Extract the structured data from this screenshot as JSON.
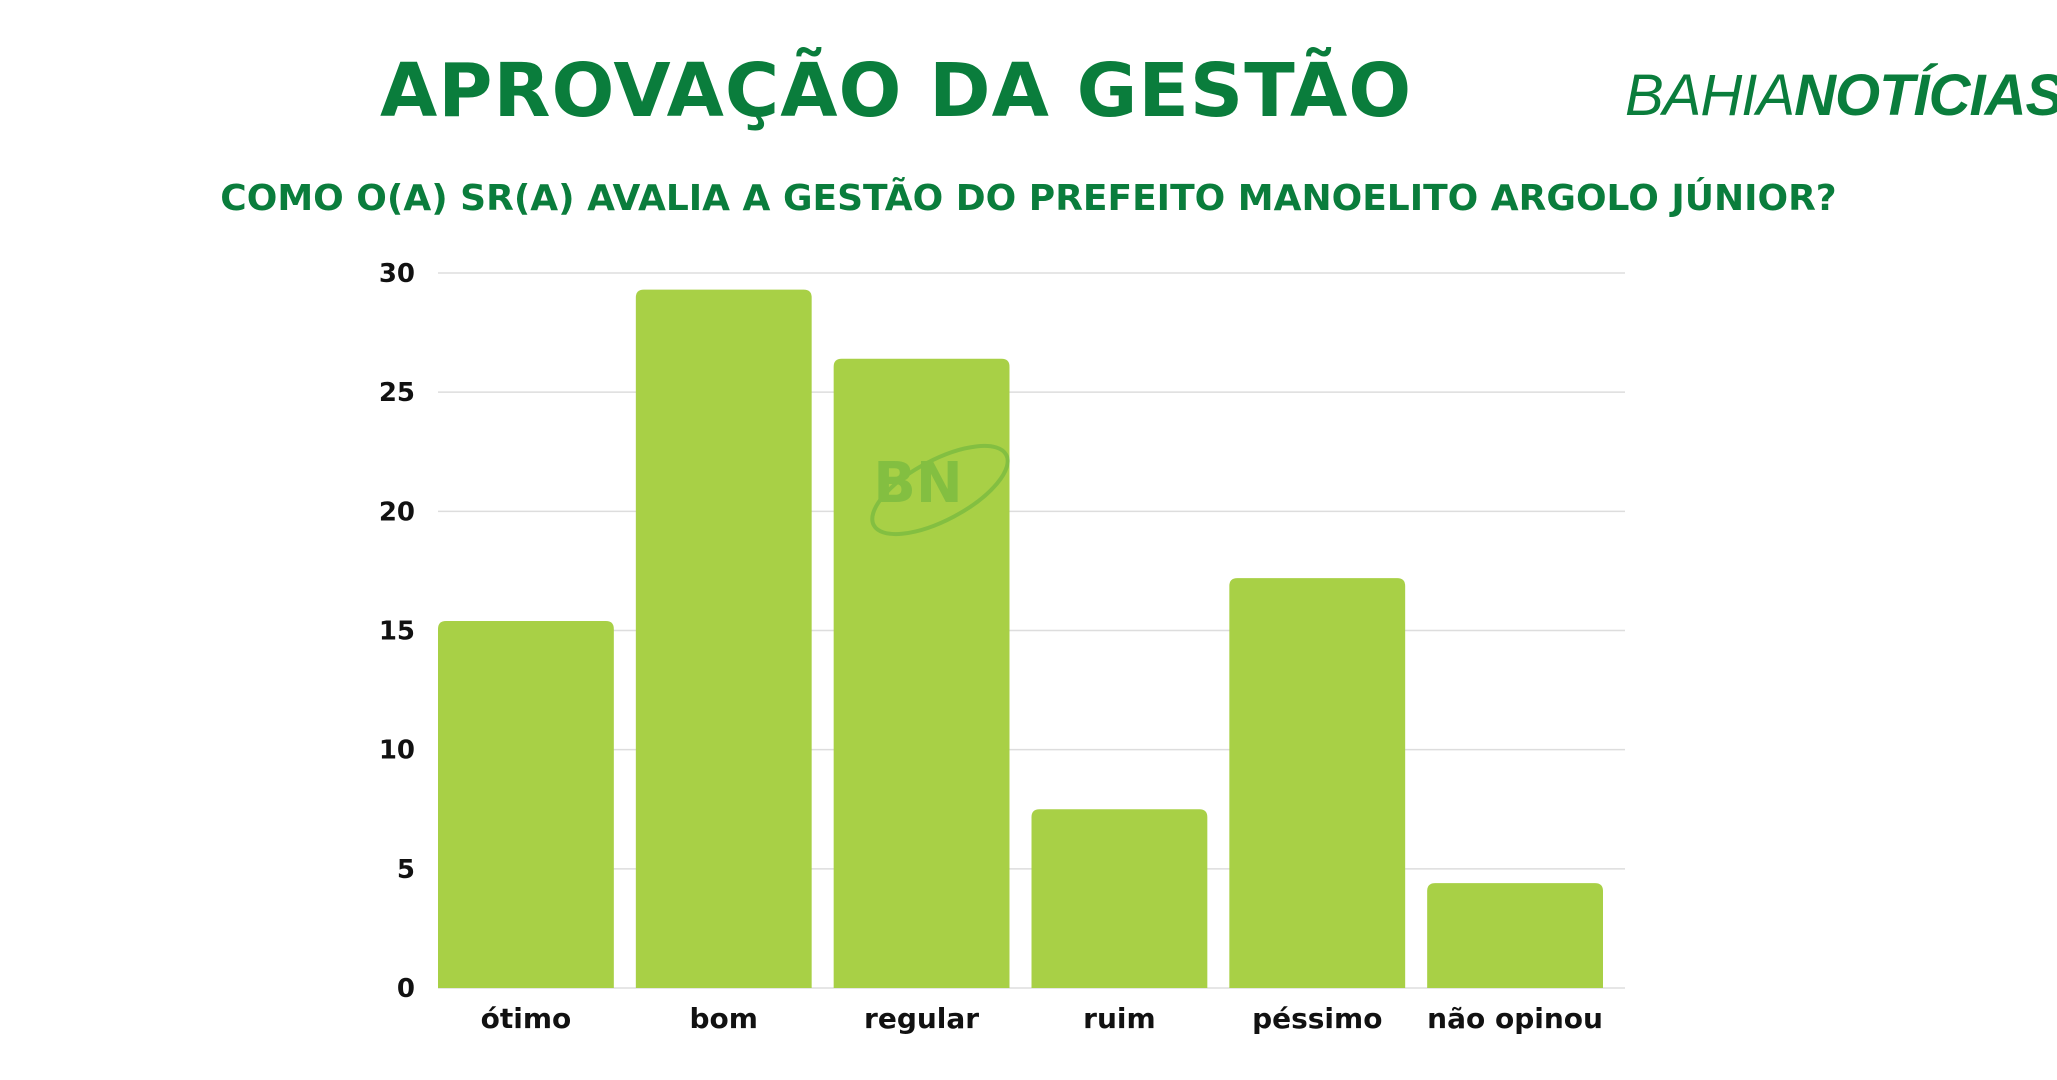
{
  "header": {
    "title": "APROVAÇÃO DA GESTÃO",
    "subtitle": "COMO O(A) SR(A) AVALIA A GESTÃO DO PREFEITO MANOELITO ARGOLO JÚNIOR?",
    "brand_light": "BAHIA",
    "brand_bold": "NOTÍCIAS",
    "watermark": "BN"
  },
  "colors": {
    "brand_green": "#0a7d3c",
    "bar_green": "#a8d046",
    "grid": "#dddddd",
    "axis_text": "#111111"
  },
  "chart_data": {
    "type": "bar",
    "categories": [
      "ótimo",
      "bom",
      "regular",
      "ruim",
      "péssimo",
      "não opinou"
    ],
    "values": [
      15.4,
      29.3,
      26.4,
      7.5,
      17.2,
      4.4
    ],
    "ylim": [
      0,
      30
    ],
    "yticks": [
      0,
      5,
      10,
      15,
      20,
      25,
      30
    ],
    "xlabel": "",
    "ylabel": "",
    "grid": true,
    "legend": "none"
  }
}
